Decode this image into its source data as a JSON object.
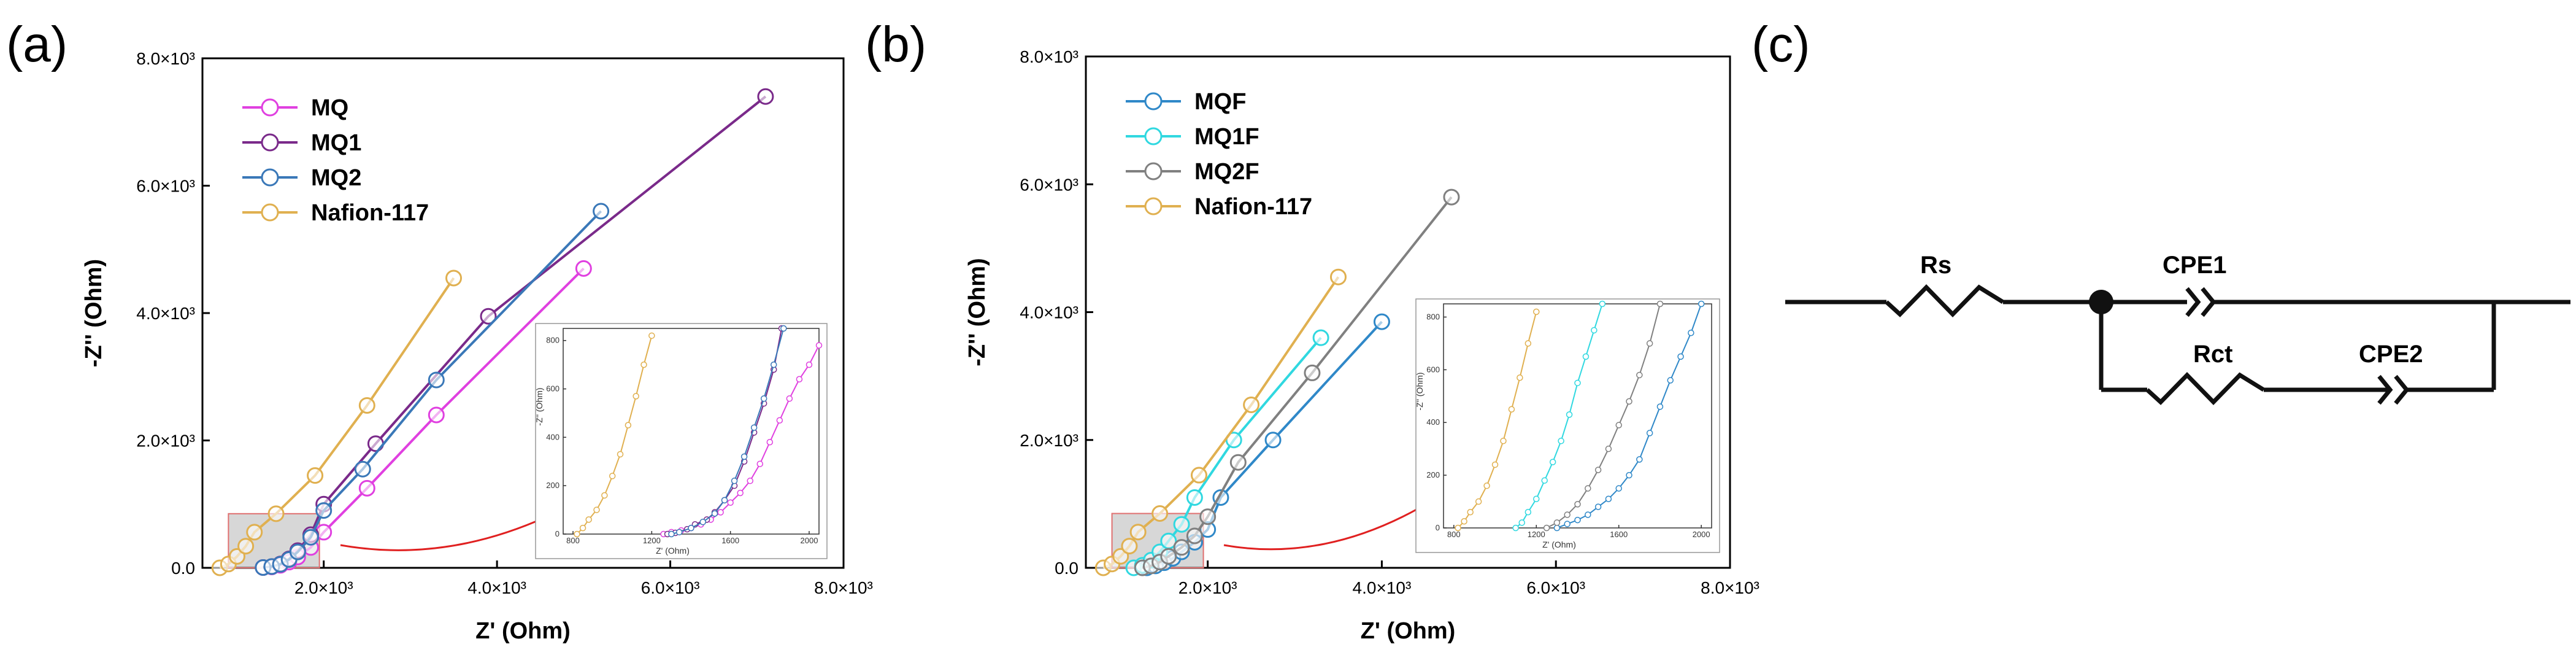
{
  "panels": {
    "a": {
      "label": "(a)"
    },
    "b": {
      "label": "(b)"
    },
    "c": {
      "label": "(c)"
    }
  },
  "chart_data": [
    {
      "id": "a",
      "type": "line",
      "xlabel": "Z' (Ohm)",
      "ylabel": "-Z'' (Ohm)",
      "xlim": [
        600,
        8000
      ],
      "ylim": [
        0,
        8000
      ],
      "x_ticks": [
        {
          "v": 2000,
          "label": "2.0×10³"
        },
        {
          "v": 4000,
          "label": "4.0×10³"
        },
        {
          "v": 6000,
          "label": "6.0×10³"
        },
        {
          "v": 8000,
          "label": "8.0×10³"
        }
      ],
      "y_ticks": [
        {
          "v": 0,
          "label": "0.0"
        },
        {
          "v": 2000,
          "label": "2.0×10³"
        },
        {
          "v": 4000,
          "label": "4.0×10³"
        },
        {
          "v": 6000,
          "label": "6.0×10³"
        },
        {
          "v": 8000,
          "label": "8.0×10³"
        }
      ],
      "series": [
        {
          "name": "MQ",
          "color": "#e040e0",
          "points": [
            [
              1300,
              5
            ],
            [
              1400,
              15
            ],
            [
              1500,
              40
            ],
            [
              1600,
              90
            ],
            [
              1700,
              170
            ],
            [
              1850,
              320
            ],
            [
              2000,
              560
            ],
            [
              2500,
              1250
            ],
            [
              3300,
              2400
            ],
            [
              5000,
              4700
            ]
          ]
        },
        {
          "name": "MQ1",
          "color": "#7a2a8a",
          "points": [
            [
              1300,
              5
            ],
            [
              1400,
              20
            ],
            [
              1500,
              60
            ],
            [
              1600,
              140
            ],
            [
              1700,
              270
            ],
            [
              1850,
              520
            ],
            [
              2000,
              1000
            ],
            [
              2600,
              1950
            ],
            [
              3900,
              3950
            ],
            [
              7100,
              7400
            ]
          ]
        },
        {
          "name": "MQ2",
          "color": "#3a78b8",
          "points": [
            [
              1300,
              5
            ],
            [
              1400,
              20
            ],
            [
              1500,
              55
            ],
            [
              1600,
              130
            ],
            [
              1700,
              250
            ],
            [
              1850,
              480
            ],
            [
              2000,
              900
            ],
            [
              2450,
              1550
            ],
            [
              3300,
              2950
            ],
            [
              5200,
              5600
            ]
          ]
        },
        {
          "name": "Nafion-117",
          "color": "#e0b050",
          "points": [
            [
              800,
              0
            ],
            [
              900,
              60
            ],
            [
              1000,
              180
            ],
            [
              1100,
              340
            ],
            [
              1200,
              560
            ],
            [
              1450,
              850
            ],
            [
              1900,
              1450
            ],
            [
              2500,
              2550
            ],
            [
              3500,
              4550
            ]
          ]
        }
      ],
      "highlight_box": {
        "x": [
          900,
          1950
        ],
        "y": [
          0,
          850
        ]
      },
      "inset": {
        "xlim": [
          750,
          2050
        ],
        "ylim": [
          0,
          850
        ],
        "x_ticks": [
          {
            "v": 800,
            "label": "800"
          },
          {
            "v": 1200,
            "label": "1200"
          },
          {
            "v": 1600,
            "label": "1600"
          },
          {
            "v": 2000,
            "label": "2000"
          }
        ],
        "y_ticks": [
          {
            "v": 0,
            "label": "0"
          },
          {
            "v": 200,
            "label": "200"
          },
          {
            "v": 400,
            "label": "400"
          },
          {
            "v": 600,
            "label": "600"
          },
          {
            "v": 800,
            "label": "800"
          }
        ],
        "xlabel": "Z' (Ohm)",
        "ylabel": "-Z'' (Ohm)",
        "series": [
          {
            "name": "MQ",
            "color": "#e040e0",
            "points": [
              [
                1260,
                0
              ],
              [
                1300,
                8
              ],
              [
                1350,
                15
              ],
              [
                1400,
                25
              ],
              [
                1450,
                40
              ],
              [
                1500,
                60
              ],
              [
                1550,
                90
              ],
              [
                1600,
                130
              ],
              [
                1650,
                170
              ],
              [
                1700,
                220
              ],
              [
                1750,
                290
              ],
              [
                1800,
                380
              ],
              [
                1850,
                470
              ],
              [
                1900,
                560
              ],
              [
                1950,
                640
              ],
              [
                2000,
                700
              ],
              [
                2050,
                780
              ]
            ]
          },
          {
            "name": "MQ1",
            "color": "#7a2a8a",
            "points": [
              [
                1280,
                0
              ],
              [
                1320,
                5
              ],
              [
                1380,
                20
              ],
              [
                1420,
                40
              ],
              [
                1480,
                60
              ],
              [
                1520,
                90
              ],
              [
                1570,
                140
              ],
              [
                1620,
                200
              ],
              [
                1670,
                300
              ],
              [
                1720,
                420
              ],
              [
                1770,
                540
              ],
              [
                1820,
                680
              ],
              [
                1860,
                850
              ]
            ]
          },
          {
            "name": "MQ2",
            "color": "#3a78b8",
            "points": [
              [
                1300,
                0
              ],
              [
                1340,
                8
              ],
              [
                1400,
                25
              ],
              [
                1460,
                50
              ],
              [
                1520,
                85
              ],
              [
                1570,
                140
              ],
              [
                1620,
                220
              ],
              [
                1670,
                320
              ],
              [
                1720,
                440
              ],
              [
                1770,
                560
              ],
              [
                1820,
                700
              ],
              [
                1870,
                850
              ]
            ]
          },
          {
            "name": "Nafion-117",
            "color": "#e0b050",
            "points": [
              [
                820,
                0
              ],
              [
                850,
                25
              ],
              [
                880,
                60
              ],
              [
                920,
                100
              ],
              [
                960,
                160
              ],
              [
                1000,
                240
              ],
              [
                1040,
                330
              ],
              [
                1080,
                450
              ],
              [
                1120,
                570
              ],
              [
                1160,
                700
              ],
              [
                1200,
                820
              ]
            ]
          }
        ]
      }
    },
    {
      "id": "b",
      "type": "line",
      "xlabel": "Z' (Ohm)",
      "ylabel": "-Z'' (Ohm)",
      "xlim": [
        600,
        8000
      ],
      "ylim": [
        0,
        8000
      ],
      "x_ticks": [
        {
          "v": 2000,
          "label": "2.0×10³"
        },
        {
          "v": 4000,
          "label": "4.0×10³"
        },
        {
          "v": 6000,
          "label": "6.0×10³"
        },
        {
          "v": 8000,
          "label": "8.0×10³"
        }
      ],
      "y_ticks": [
        {
          "v": 0,
          "label": "0.0"
        },
        {
          "v": 2000,
          "label": "2.0×10³"
        },
        {
          "v": 4000,
          "label": "4.0×10³"
        },
        {
          "v": 6000,
          "label": "6.0×10³"
        },
        {
          "v": 8000,
          "label": "8.0×10³"
        }
      ],
      "series": [
        {
          "name": "MQF",
          "color": "#2f88c8",
          "points": [
            [
              1300,
              0
            ],
            [
              1400,
              30
            ],
            [
              1500,
              80
            ],
            [
              1600,
              150
            ],
            [
              1700,
              250
            ],
            [
              1850,
              400
            ],
            [
              2000,
              600
            ],
            [
              2150,
              1100
            ],
            [
              2750,
              2000
            ],
            [
              4000,
              3850
            ]
          ]
        },
        {
          "name": "MQ1F",
          "color": "#30d8e0",
          "points": [
            [
              1150,
              0
            ],
            [
              1250,
              40
            ],
            [
              1350,
              120
            ],
            [
              1450,
              250
            ],
            [
              1550,
              420
            ],
            [
              1700,
              680
            ],
            [
              1850,
              1100
            ],
            [
              2300,
              2000
            ],
            [
              3300,
              3600
            ]
          ]
        },
        {
          "name": "MQ2F",
          "color": "#808080",
          "points": [
            [
              1250,
              0
            ],
            [
              1350,
              30
            ],
            [
              1450,
              90
            ],
            [
              1550,
              180
            ],
            [
              1700,
              320
            ],
            [
              1850,
              500
            ],
            [
              2000,
              800
            ],
            [
              2350,
              1650
            ],
            [
              3200,
              3050
            ],
            [
              4800,
              5800
            ]
          ]
        },
        {
          "name": "Nafion-117",
          "color": "#e0b050",
          "points": [
            [
              800,
              0
            ],
            [
              900,
              60
            ],
            [
              1000,
              180
            ],
            [
              1100,
              340
            ],
            [
              1200,
              560
            ],
            [
              1450,
              850
            ],
            [
              1900,
              1450
            ],
            [
              2500,
              2550
            ],
            [
              3500,
              4550
            ]
          ]
        }
      ],
      "highlight_box": {
        "x": [
          900,
          1950
        ],
        "y": [
          0,
          850
        ]
      },
      "inset": {
        "xlim": [
          750,
          2050
        ],
        "ylim": [
          0,
          850
        ],
        "x_ticks": [
          {
            "v": 800,
            "label": "800"
          },
          {
            "v": 1200,
            "label": "1200"
          },
          {
            "v": 1600,
            "label": "1600"
          },
          {
            "v": 2000,
            "label": "2000"
          }
        ],
        "y_ticks": [
          {
            "v": 0,
            "label": "0"
          },
          {
            "v": 200,
            "label": "200"
          },
          {
            "v": 400,
            "label": "400"
          },
          {
            "v": 600,
            "label": "600"
          },
          {
            "v": 800,
            "label": "800"
          }
        ],
        "xlabel": "Z' (Ohm)",
        "ylabel": "-Z'' (Ohm)",
        "series": [
          {
            "name": "MQF",
            "color": "#2f88c8",
            "points": [
              [
                1300,
                0
              ],
              [
                1350,
                15
              ],
              [
                1400,
                30
              ],
              [
                1450,
                50
              ],
              [
                1500,
                80
              ],
              [
                1550,
                110
              ],
              [
                1600,
                150
              ],
              [
                1650,
                200
              ],
              [
                1700,
                260
              ],
              [
                1750,
                360
              ],
              [
                1800,
                460
              ],
              [
                1850,
                560
              ],
              [
                1900,
                650
              ],
              [
                1950,
                740
              ],
              [
                2000,
                850
              ]
            ]
          },
          {
            "name": "MQ1F",
            "color": "#30d8e0",
            "points": [
              [
                1100,
                0
              ],
              [
                1130,
                20
              ],
              [
                1160,
                60
              ],
              [
                1200,
                110
              ],
              [
                1240,
                180
              ],
              [
                1280,
                250
              ],
              [
                1320,
                330
              ],
              [
                1360,
                430
              ],
              [
                1400,
                550
              ],
              [
                1440,
                650
              ],
              [
                1480,
                750
              ],
              [
                1520,
                850
              ]
            ]
          },
          {
            "name": "MQ2F",
            "color": "#808080",
            "points": [
              [
                1250,
                0
              ],
              [
                1300,
                20
              ],
              [
                1350,
                50
              ],
              [
                1400,
                90
              ],
              [
                1450,
                150
              ],
              [
                1500,
                220
              ],
              [
                1550,
                300
              ],
              [
                1600,
                390
              ],
              [
                1650,
                480
              ],
              [
                1700,
                580
              ],
              [
                1750,
                700
              ],
              [
                1800,
                850
              ]
            ]
          },
          {
            "name": "Nafion-117",
            "color": "#e0b050",
            "points": [
              [
                820,
                0
              ],
              [
                850,
                25
              ],
              [
                880,
                60
              ],
              [
                920,
                100
              ],
              [
                960,
                160
              ],
              [
                1000,
                240
              ],
              [
                1040,
                330
              ],
              [
                1080,
                450
              ],
              [
                1120,
                570
              ],
              [
                1160,
                700
              ],
              [
                1200,
                820
              ]
            ]
          }
        ]
      }
    }
  ],
  "circuit": {
    "labels": {
      "rs": "Rs",
      "cpe1": "CPE1",
      "rct": "Rct",
      "cpe2": "CPE2"
    }
  }
}
